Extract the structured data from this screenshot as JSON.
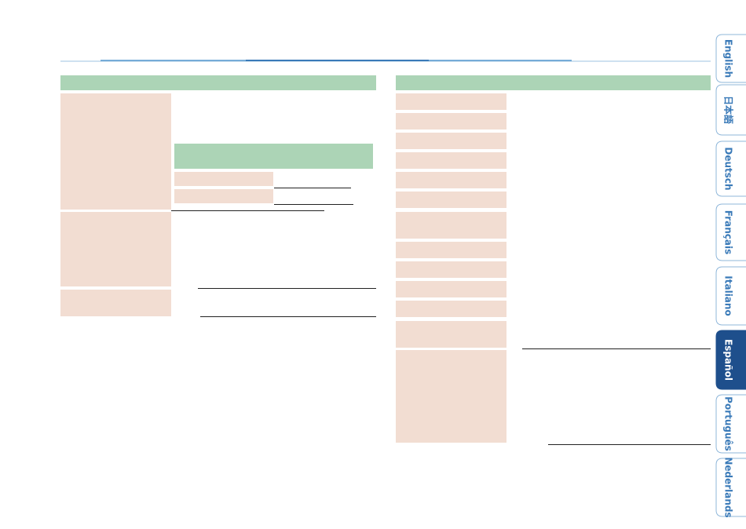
{
  "language_tabs": [
    {
      "label": "English",
      "active": false
    },
    {
      "label": "日本語",
      "active": false
    },
    {
      "label": "Deutsch",
      "active": false
    },
    {
      "label": "Français",
      "active": false
    },
    {
      "label": "Italiano",
      "active": false
    },
    {
      "label": "Español",
      "active": true
    },
    {
      "label": "Português",
      "active": false
    },
    {
      "label": "Nederlands",
      "active": false
    }
  ]
}
